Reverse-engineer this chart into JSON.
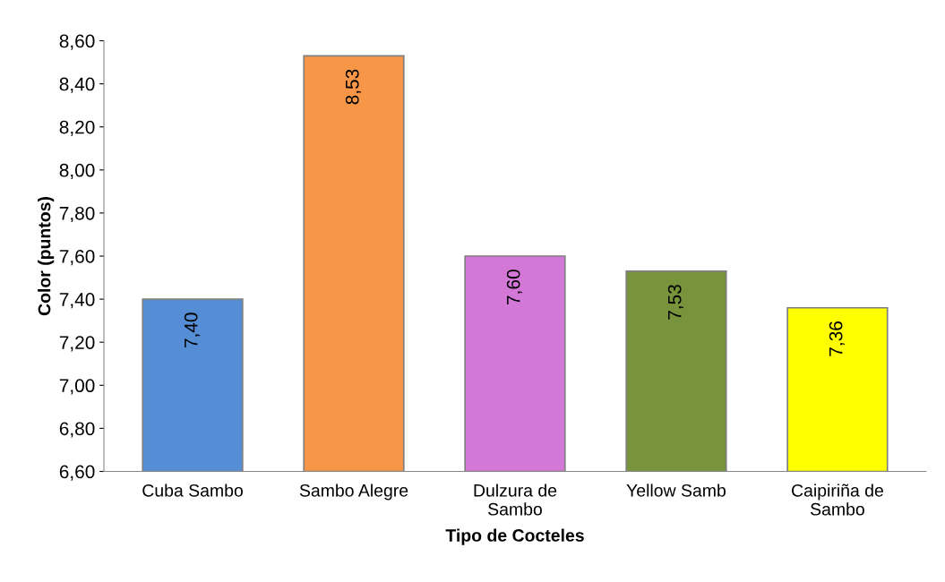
{
  "chart_data": {
    "type": "bar",
    "xlabel": "Tipo de Cocteles",
    "ylabel": "Color (puntos)",
    "categories": [
      "Cuba Sambo",
      "Sambo Alegre",
      "Dulzura de\nSambo",
      "Yellow Samb",
      "Caipiriña de\nSambo"
    ],
    "values": [
      7.4,
      8.53,
      7.6,
      7.53,
      7.36
    ],
    "colors": [
      "#558ed5",
      "#f79646",
      "#d378d6",
      "#77933c",
      "#ffff00"
    ],
    "value_labels": [
      "7,40",
      "8,53",
      "7,60",
      "7,53",
      "7,36"
    ],
    "ylim": [
      6.6,
      8.6
    ],
    "yticks": [
      {
        "value": 6.6,
        "label": "6,60"
      },
      {
        "value": 6.8,
        "label": "6,80"
      },
      {
        "value": 7.0,
        "label": "7,00"
      },
      {
        "value": 7.2,
        "label": "7,20"
      },
      {
        "value": 7.4,
        "label": "7,40"
      },
      {
        "value": 7.6,
        "label": "7,60"
      },
      {
        "value": 7.8,
        "label": "7,80"
      },
      {
        "value": 8.0,
        "label": "8,00"
      },
      {
        "value": 8.2,
        "label": "8,20"
      },
      {
        "value": 8.4,
        "label": "8,40"
      },
      {
        "value": 8.6,
        "label": "8,60"
      }
    ],
    "grid": false,
    "legend": false
  }
}
